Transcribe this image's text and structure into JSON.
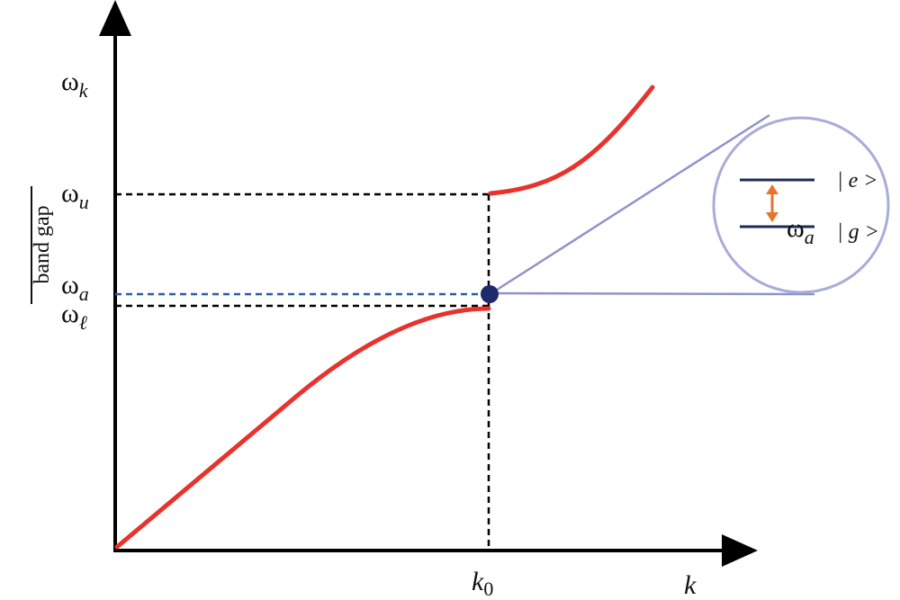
{
  "axes": {
    "y": {
      "symbol": "ω",
      "subscript": "k"
    },
    "x": "k"
  },
  "levels": [
    {
      "symbol": "ω",
      "subscript": "u"
    },
    {
      "symbol": "ω",
      "subscript": "a"
    },
    {
      "symbol": "ω",
      "subscript": "ℓ"
    }
  ],
  "band_gap": "band gap",
  "k0": {
    "symbol": "k",
    "subscript": "0"
  },
  "inset": {
    "excited": "| e >",
    "ground": "| g >",
    "transition": {
      "symbol": "ω",
      "subscript": "a"
    }
  }
}
